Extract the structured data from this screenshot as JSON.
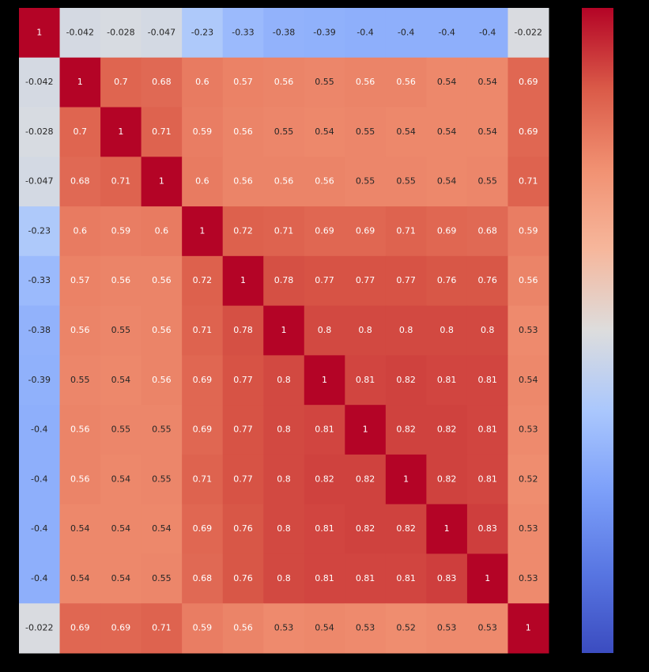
{
  "chart_data": {
    "type": "heatmap",
    "colormap": "coolwarm",
    "zlim": [
      -1,
      1
    ],
    "z": [
      [
        1,
        -0.042,
        -0.028,
        -0.047,
        -0.23,
        -0.33,
        -0.38,
        -0.39,
        -0.4,
        -0.4,
        -0.4,
        -0.4,
        -0.022
      ],
      [
        -0.042,
        1,
        0.7,
        0.68,
        0.6,
        0.57,
        0.56,
        0.55,
        0.56,
        0.56,
        0.54,
        0.54,
        0.69
      ],
      [
        -0.028,
        0.7,
        1,
        0.71,
        0.59,
        0.56,
        0.55,
        0.54,
        0.55,
        0.54,
        0.54,
        0.54,
        0.69
      ],
      [
        -0.047,
        0.68,
        0.71,
        1,
        0.6,
        0.56,
        0.56,
        0.56,
        0.55,
        0.55,
        0.54,
        0.55,
        0.71
      ],
      [
        -0.23,
        0.6,
        0.59,
        0.6,
        1,
        0.72,
        0.71,
        0.69,
        0.69,
        0.71,
        0.69,
        0.68,
        0.59
      ],
      [
        -0.33,
        0.57,
        0.56,
        0.56,
        0.72,
        1,
        0.78,
        0.77,
        0.77,
        0.77,
        0.76,
        0.76,
        0.56
      ],
      [
        -0.38,
        0.56,
        0.55,
        0.56,
        0.71,
        0.78,
        1,
        0.8,
        0.8,
        0.8,
        0.8,
        0.8,
        0.53
      ],
      [
        -0.39,
        0.55,
        0.54,
        0.56,
        0.69,
        0.77,
        0.8,
        1,
        0.81,
        0.82,
        0.81,
        0.81,
        0.54
      ],
      [
        -0.4,
        0.56,
        0.55,
        0.55,
        0.69,
        0.77,
        0.8,
        0.81,
        1,
        0.82,
        0.82,
        0.81,
        0.53
      ],
      [
        -0.4,
        0.56,
        0.54,
        0.55,
        0.71,
        0.77,
        0.8,
        0.82,
        0.82,
        1,
        0.82,
        0.81,
        0.52
      ],
      [
        -0.4,
        0.54,
        0.54,
        0.54,
        0.69,
        0.76,
        0.8,
        0.81,
        0.82,
        0.82,
        1,
        0.83,
        0.53
      ],
      [
        -0.4,
        0.54,
        0.54,
        0.55,
        0.68,
        0.76,
        0.8,
        0.81,
        0.81,
        0.81,
        0.83,
        1,
        0.53
      ],
      [
        -0.022,
        0.69,
        0.69,
        0.71,
        0.59,
        0.56,
        0.53,
        0.54,
        0.53,
        0.52,
        0.53,
        0.53,
        1
      ]
    ]
  }
}
